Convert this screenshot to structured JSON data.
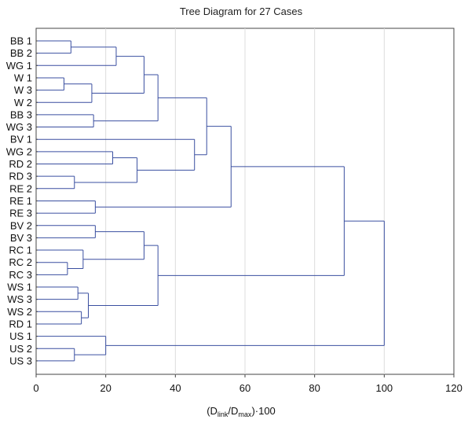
{
  "chart_data": {
    "type": "dendrogram",
    "title": "Tree Diagram for 27 Cases",
    "xlabel": {
      "prefix": "(D",
      "sub1": "link",
      "mid": "/D",
      "sub2": "max",
      "suffix": ")·100"
    },
    "xlim": [
      0,
      120
    ],
    "xticks": [
      "0",
      "20",
      "40",
      "60",
      "80",
      "100",
      "120"
    ],
    "grid": "vertical",
    "line_color": "#3a4fa0",
    "leaves": [
      "BB 1",
      "BB 2",
      "WG 1",
      "W 1",
      "W 3",
      "W 2",
      "BB 3",
      "WG 3",
      "BV 1",
      "WG 2",
      "RD 2",
      "RD 3",
      "RE 2",
      "RE 1",
      "RE 3",
      "BV 2",
      "BV 3",
      "RC 1",
      "RC 2",
      "RC 3",
      "WS 1",
      "WS 3",
      "WS 2",
      "RD 1",
      "US 1",
      "US 2",
      "US 3"
    ],
    "merges": [
      [
        "BB 1",
        "BB 2",
        10
      ],
      [
        "W 1",
        "W 3",
        8
      ],
      [
        "RD 3",
        "RE 2",
        11
      ],
      [
        "RC 2",
        "RC 3",
        9
      ],
      [
        "WS 2",
        "RD 1",
        13
      ],
      [
        "US 2",
        "US 3",
        11
      ],
      [
        "WS 1",
        "WS 3",
        12
      ],
      [
        "RC 1",
        "RC 2",
        13.5
      ],
      [
        "W 1",
        "W 2",
        16
      ],
      [
        "BB 3",
        "WG 3",
        16.5
      ],
      [
        "RE 1",
        "RE 3",
        17
      ],
      [
        "BV 2",
        "BV 3",
        17
      ],
      [
        "WS 1",
        "WS 2",
        15
      ],
      [
        "US 1",
        "US 2",
        20
      ],
      [
        "WG 2",
        "RD 2",
        22
      ],
      [
        "BB 1",
        "WG 1",
        23
      ],
      [
        "WG 2",
        "RD 3",
        29
      ],
      [
        "BV 2",
        "RC 1",
        31
      ],
      [
        "BB 1",
        "W 1",
        31
      ],
      [
        "BB 1",
        "BB 3",
        35
      ],
      [
        "BV 2",
        "WS 1",
        35
      ],
      [
        "BV 1",
        "WG 2",
        45.5
      ],
      [
        "BB 1",
        "BV 1",
        49
      ],
      [
        "BB 1",
        "RE 1",
        56
      ],
      [
        "BB 1",
        "BV 2",
        88.5
      ],
      [
        "BB 1",
        "US 1",
        100
      ]
    ]
  }
}
